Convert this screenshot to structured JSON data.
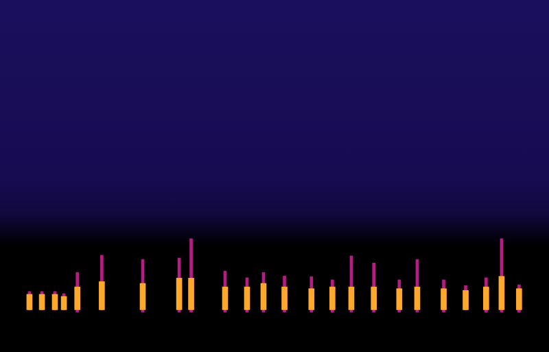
{
  "chart_data": {
    "type": "bar",
    "xlim": [
      0,
      100
    ],
    "ylim": [
      0,
      100
    ],
    "grid": false,
    "tick_labels": false,
    "x": [
      0.9,
      3.4,
      6.0,
      7.8,
      10.5,
      15.4,
      23.6,
      30.9,
      33.3,
      40.1,
      44.5,
      47.8,
      52.0,
      57.4,
      61.6,
      65.4,
      69.9,
      75.0,
      78.6,
      83.9,
      88.3,
      92.4,
      95.5,
      99.0
    ],
    "series": [
      {
        "color": "#b41e82",
        "values": [
          [
            11.9,
            17.2
          ],
          [
            11.9,
            17.2
          ],
          [
            11.9,
            17.2
          ],
          [
            11.9,
            16.6
          ],
          [
            11.3,
            22.6
          ],
          [
            11.9,
            27.5
          ],
          [
            11.3,
            26.3
          ],
          [
            11.3,
            26.7
          ],
          [
            11.3,
            32.2
          ],
          [
            11.3,
            23.0
          ],
          [
            11.3,
            21.1
          ],
          [
            11.3,
            22.6
          ],
          [
            11.3,
            21.6
          ],
          [
            11.3,
            21.4
          ],
          [
            11.3,
            20.5
          ],
          [
            11.3,
            27.3
          ],
          [
            11.3,
            25.3
          ],
          [
            11.3,
            20.5
          ],
          [
            11.3,
            26.3
          ],
          [
            11.3,
            20.5
          ],
          [
            11.9,
            18.9
          ],
          [
            11.3,
            21.1
          ],
          [
            11.3,
            32.2
          ],
          [
            11.3,
            19.1
          ]
        ]
      },
      {
        "color": "#ffa82e",
        "values": [
          [
            12.0,
            16.4
          ],
          [
            12.0,
            16.4
          ],
          [
            12.0,
            16.4
          ],
          [
            12.0,
            15.8
          ],
          [
            12.0,
            18.5
          ],
          [
            12.0,
            20.0
          ],
          [
            12.0,
            19.5
          ],
          [
            12.0,
            21.0
          ],
          [
            12.0,
            21.0
          ],
          [
            12.0,
            18.5
          ],
          [
            12.0,
            18.5
          ],
          [
            12.0,
            19.5
          ],
          [
            12.0,
            18.5
          ],
          [
            12.0,
            18.0
          ],
          [
            12.0,
            18.5
          ],
          [
            12.0,
            18.5
          ],
          [
            12.0,
            18.5
          ],
          [
            12.0,
            18.0
          ],
          [
            12.0,
            18.5
          ],
          [
            12.0,
            18.0
          ],
          [
            12.0,
            17.5
          ],
          [
            12.0,
            18.5
          ],
          [
            12.0,
            21.5
          ],
          [
            12.0,
            18.0
          ]
        ]
      }
    ]
  }
}
